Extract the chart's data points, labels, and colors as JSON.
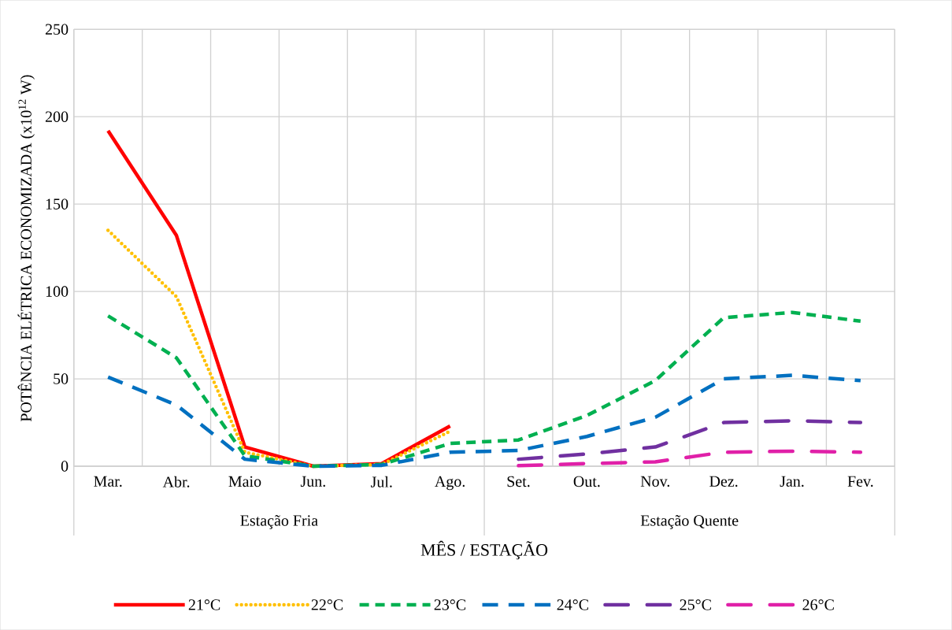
{
  "chart_data": {
    "type": "line",
    "xlabel": "MÊS / ESTAÇÃO",
    "ylabel": "POTÊNCIA ELÉTRICA ECONOMIZADA (x10$^{12}$ W)",
    "categories": [
      "Mar.",
      "Abr.",
      "Maio",
      "Jun.",
      "Jul.",
      "Ago.",
      "Set.",
      "Out.",
      "Nov.",
      "Dez.",
      "Jan.",
      "Fev."
    ],
    "annotations": [
      "Estação Fria",
      "Estação Quente"
    ],
    "series": [
      {
        "name": "21°C",
        "color": "#ff0000",
        "line_style": "solid",
        "values": [
          192,
          132,
          11,
          0,
          1.5,
          23,
          null,
          null,
          null,
          null,
          null,
          null
        ]
      },
      {
        "name": "22°C",
        "color": "#ffc000",
        "line_style": "dotted",
        "values": [
          135,
          97,
          8,
          0,
          1,
          20,
          null,
          null,
          null,
          null,
          null,
          null
        ]
      },
      {
        "name": "23°C",
        "color": "#00b050",
        "line_style": "dashed",
        "values": [
          86,
          62,
          6,
          0,
          1,
          13,
          15,
          29,
          49,
          85,
          88,
          83
        ]
      },
      {
        "name": "24°C",
        "color": "#0070c0",
        "line_style": "longdashed",
        "values": [
          51,
          35,
          4,
          0,
          0.5,
          8,
          9,
          17,
          28,
          50,
          52,
          49
        ]
      },
      {
        "name": "25°C",
        "color": "#7030a0",
        "line_style": "dashdot",
        "values": [
          null,
          null,
          null,
          null,
          null,
          null,
          4,
          7,
          11,
          25,
          26,
          25
        ]
      },
      {
        "name": "26°C",
        "color": "#e020a8",
        "line_style": "dashdot",
        "values": [
          null,
          null,
          null,
          null,
          null,
          null,
          0.3,
          1.5,
          2.5,
          8,
          8.6,
          8
        ]
      }
    ],
    "ylim": [
      0,
      250
    ],
    "yticks": [
      0,
      50,
      100,
      150,
      200,
      250
    ],
    "grid": true,
    "legend": "bottom",
    "marker": "none"
  }
}
